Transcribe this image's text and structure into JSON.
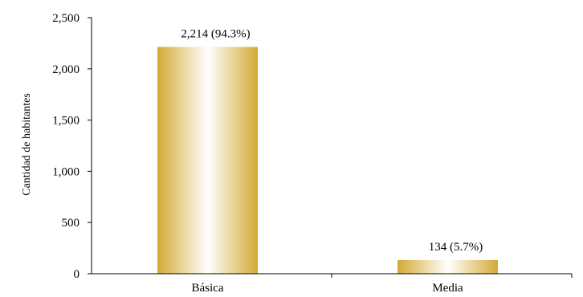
{
  "chart_data": {
    "type": "bar",
    "title": "",
    "xlabel": "",
    "ylabel": "Cantidad de habitantes",
    "categories": [
      "Básica",
      "Media"
    ],
    "values": [
      2214,
      134
    ],
    "data_labels": [
      "2,214 (94.3%)",
      "134 (5.7%)"
    ],
    "ylim": [
      0,
      2500
    ],
    "yticks": [
      0,
      500,
      1000,
      1500,
      2000,
      2500
    ],
    "ytick_labels": [
      "0",
      "500",
      "1,000",
      "1,500",
      "2,000",
      "2,500"
    ],
    "grid": false,
    "legend": "none",
    "colors": {
      "bar_edge": "#D4A935",
      "bar_center": "#FFFFFF"
    }
  }
}
